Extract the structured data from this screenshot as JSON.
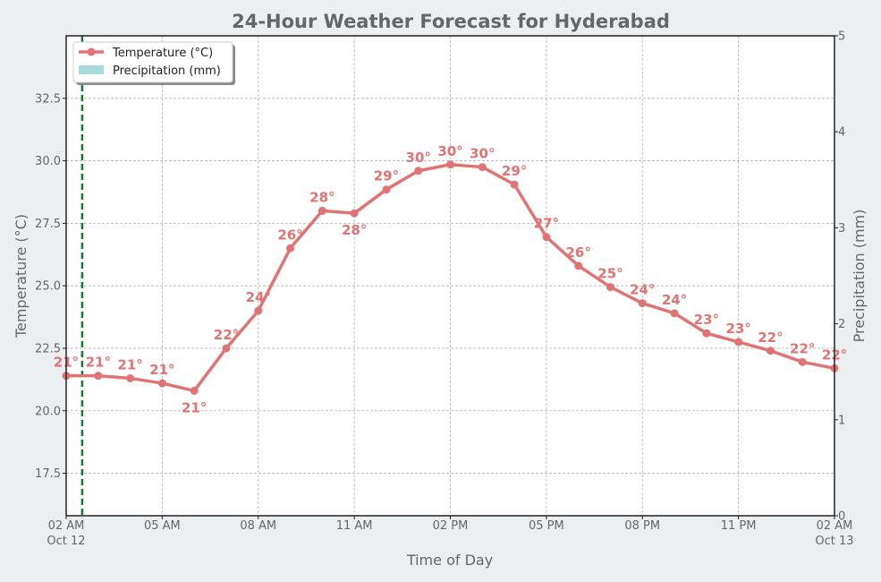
{
  "chart_data": {
    "type": "line",
    "title": "24-Hour Weather Forecast for Hyderabad",
    "xlabel": "Time of Day",
    "ylabel": "Temperature (°C)",
    "y2label": "Precipitation (mm)",
    "ylim": [
      15.8,
      35.0
    ],
    "y2lim": [
      0,
      5
    ],
    "xlim_hours": [
      0,
      24
    ],
    "yticks": [
      17.5,
      20.0,
      22.5,
      25.0,
      27.5,
      30.0,
      32.5
    ],
    "y2ticks": [
      0,
      1,
      2,
      3,
      4,
      5
    ],
    "xticks": [
      {
        "hour": 0,
        "label": "02 AM",
        "sublabel": "Oct 12"
      },
      {
        "hour": 3,
        "label": "05 AM",
        "sublabel": ""
      },
      {
        "hour": 6,
        "label": "08 AM",
        "sublabel": ""
      },
      {
        "hour": 9,
        "label": "11 AM",
        "sublabel": ""
      },
      {
        "hour": 12,
        "label": "02 PM",
        "sublabel": ""
      },
      {
        "hour": 15,
        "label": "05 PM",
        "sublabel": ""
      },
      {
        "hour": 18,
        "label": "08 PM",
        "sublabel": ""
      },
      {
        "hour": 21,
        "label": "11 PM",
        "sublabel": ""
      },
      {
        "hour": 24,
        "label": "02 AM",
        "sublabel": "Oct 13"
      }
    ],
    "now_marker_hour": 0.5,
    "legend": [
      {
        "name": "Temperature (°C)",
        "kind": "line"
      },
      {
        "name": "Precipitation (mm)",
        "kind": "bar"
      }
    ],
    "series": [
      {
        "name": "Temperature (°C)",
        "x_hours": [
          0,
          1,
          2,
          3,
          4,
          5,
          6,
          7,
          8,
          9,
          10,
          11,
          12,
          13,
          14,
          15,
          16,
          17,
          18,
          19,
          20,
          21,
          22,
          23,
          24
        ],
        "values": [
          21.4,
          21.4,
          21.3,
          21.1,
          20.8,
          22.5,
          24.0,
          26.5,
          28.0,
          27.9,
          28.85,
          29.6,
          29.85,
          29.75,
          29.05,
          26.95,
          25.8,
          24.95,
          24.3,
          23.9,
          23.1,
          22.75,
          22.4,
          21.95,
          21.7
        ],
        "labels": [
          "21°",
          "21°",
          "21°",
          "21°",
          "21°",
          "22°",
          "24°",
          "26°",
          "28°",
          "28°",
          "29°",
          "30°",
          "30°",
          "30°",
          "29°",
          "27°",
          "26°",
          "25°",
          "24°",
          "24°",
          "23°",
          "23°",
          "22°",
          "22°",
          "22°"
        ],
        "label_below": [
          4,
          9
        ]
      },
      {
        "name": "Precipitation (mm)",
        "x_hours": [],
        "values": []
      }
    ],
    "grid": true,
    "legend_position": "top-left"
  },
  "colors": {
    "temperature": "#e07474",
    "precipitation": "#a8dcdc",
    "now_marker": "#117a2e",
    "background": "#eceff2",
    "plot_background": "#ffffff",
    "axis": "#222222",
    "text": "#666666"
  }
}
